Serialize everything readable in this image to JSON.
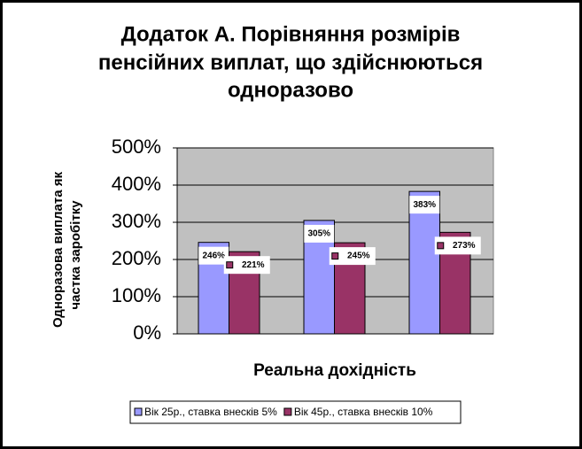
{
  "chart_data": {
    "type": "bar",
    "title": [
      "Додаток А. Порівняння розмірів",
      "пенсійних виплат, що здійснюються",
      "одноразово"
    ],
    "y_label": [
      "Одноразова виплата як",
      "частка заробітку"
    ],
    "x_label": "Реальна дохідність",
    "categories": [
      null,
      null,
      null
    ],
    "series": [
      {
        "name": "Вік 25р., ставка внесків 5%",
        "color": "#9999ff",
        "values": [
          246,
          305,
          383
        ],
        "value_labels": [
          "246%",
          "305%",
          "383%"
        ]
      },
      {
        "name": "Вік 45р., ставка внесків 10%",
        "color": "#993366",
        "values": [
          221,
          245,
          273
        ],
        "value_labels": [
          "221%",
          "245%",
          "273%"
        ]
      }
    ],
    "ylim": [
      0,
      500
    ],
    "yticks": [
      {
        "value": 0,
        "label": "0%"
      },
      {
        "value": 100,
        "label": "100%"
      },
      {
        "value": 200,
        "label": "200%"
      },
      {
        "value": 300,
        "label": "300%"
      },
      {
        "value": 400,
        "label": "400%"
      },
      {
        "value": 500,
        "label": "500%"
      }
    ],
    "grid": true,
    "plot_background": "#c0c0c0",
    "legend": "bottom"
  }
}
